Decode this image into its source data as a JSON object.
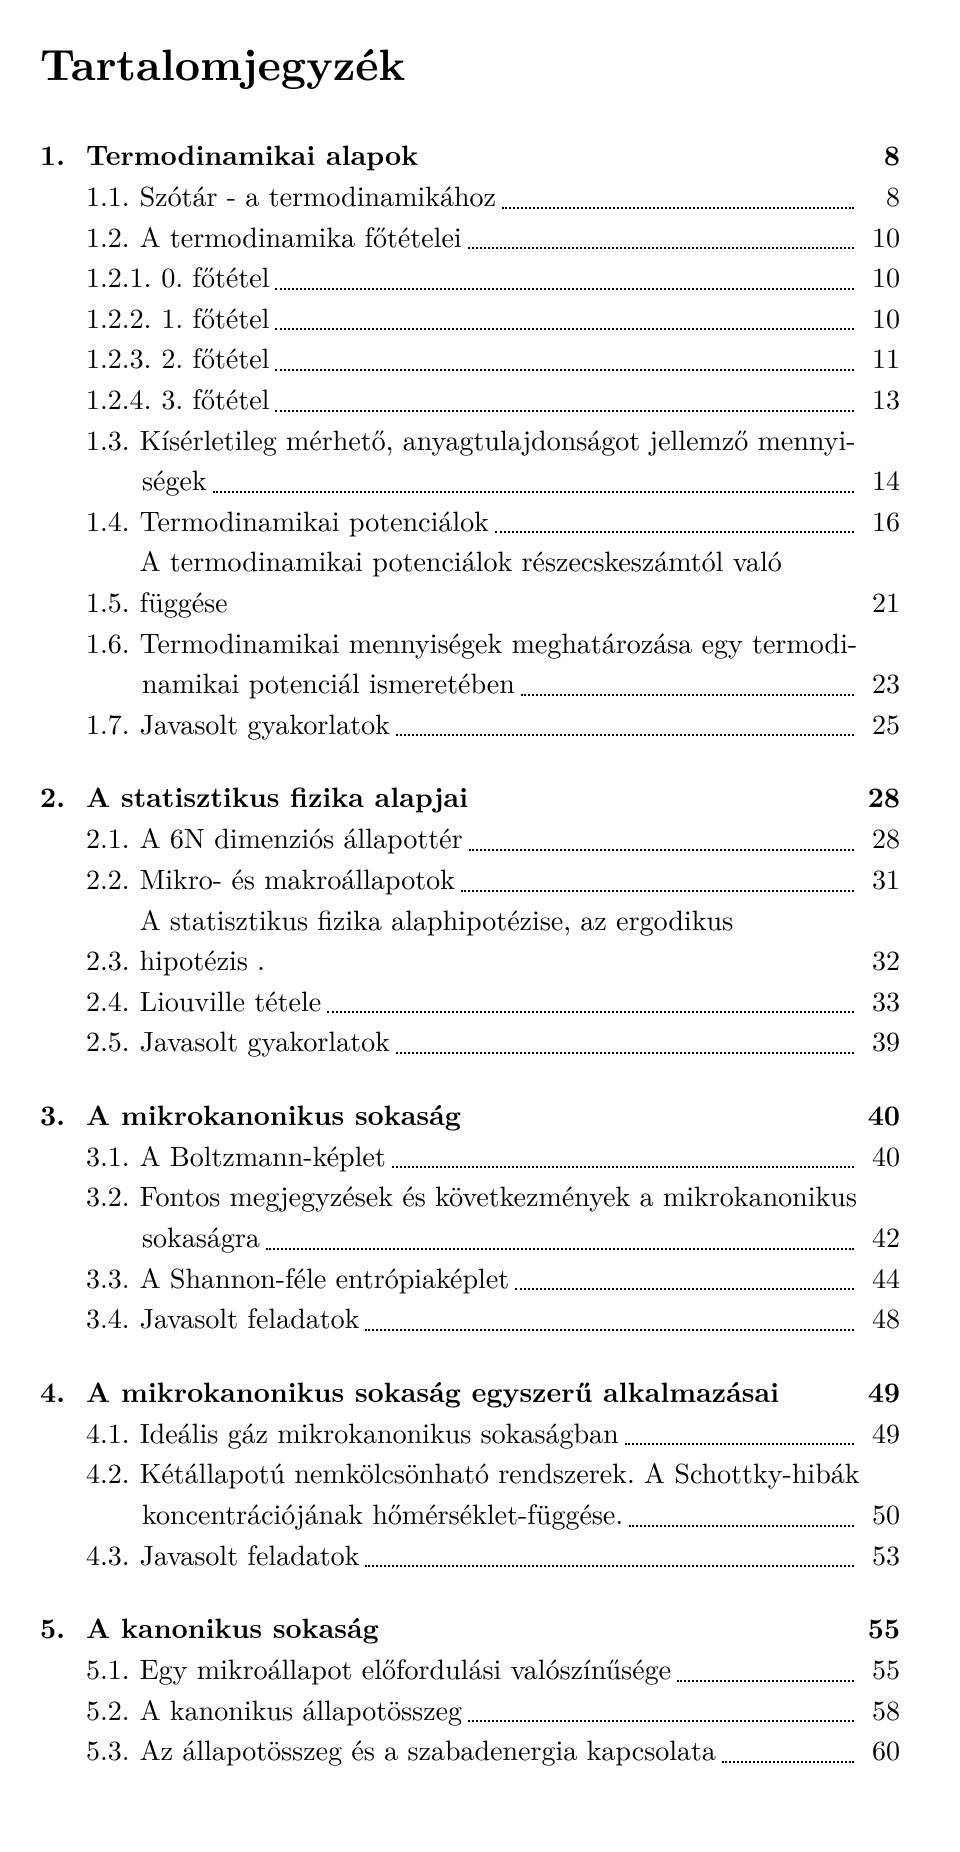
{
  "title": "Tartalomjegyzék",
  "chapters": [
    {
      "num": "1.",
      "title": "Termodinamikai alapok",
      "page": "8",
      "sections": [
        {
          "num": "1.1.",
          "title": "Szótár - a termodinamikához",
          "page": "8"
        },
        {
          "num": "1.2.",
          "title": "A termodinamika főtételei",
          "page": "10"
        },
        {
          "num": "1.2.1.",
          "title": "0. főtétel",
          "page": "10"
        },
        {
          "num": "1.2.2.",
          "title": "1. főtétel",
          "page": "10"
        },
        {
          "num": "1.2.3.",
          "title": "2. főtétel",
          "page": "11"
        },
        {
          "num": "1.2.4.",
          "title": "3. főtétel",
          "page": "13"
        },
        {
          "num": "1.3.",
          "multiline": true,
          "line1": "Kísérletileg mérhető, anyagtulajdonságot jellemző mennyi-",
          "line2": "ségek",
          "page": "14"
        },
        {
          "num": "1.4.",
          "title": "Termodinamikai potenciálok",
          "page": "16"
        },
        {
          "num": "1.5.",
          "title": "A termodinamikai potenciálok részecskeszámtól való függése",
          "page": "21",
          "nodots": true
        },
        {
          "num": "1.6.",
          "multiline": true,
          "line1": "Termodinamikai mennyiségek meghatározása egy termodi-",
          "line2": "namikai potenciál ismeretében",
          "page": "23"
        },
        {
          "num": "1.7.",
          "title": "Javasolt gyakorlatok",
          "page": "25"
        }
      ]
    },
    {
      "num": "2.",
      "title": "A statisztikus fizika alapjai",
      "page": "28",
      "sections": [
        {
          "num": "2.1.",
          "title": "A 6N dimenziós állapottér",
          "page": "28"
        },
        {
          "num": "2.2.",
          "title": "Mikro- és makroállapotok",
          "page": "31"
        },
        {
          "num": "2.3.",
          "title": "A statisztikus fizika alaphipotézise, az ergodikus hipotézis .",
          "page": "32",
          "nodots": true
        },
        {
          "num": "2.4.",
          "title": "Liouville tétele",
          "page": "33"
        },
        {
          "num": "2.5.",
          "title": "Javasolt gyakorlatok",
          "page": "39"
        }
      ]
    },
    {
      "num": "3.",
      "title": "A mikrokanonikus sokaság",
      "page": "40",
      "sections": [
        {
          "num": "3.1.",
          "title": "A Boltzmann-képlet",
          "page": "40"
        },
        {
          "num": "3.2.",
          "multiline": true,
          "line1": "Fontos megjegyzések és következmények a mikrokanonikus",
          "line2": "sokaságra",
          "page": "42"
        },
        {
          "num": "3.3.",
          "title": "A Shannon-féle entrópiaképlet",
          "page": "44"
        },
        {
          "num": "3.4.",
          "title": "Javasolt feladatok",
          "page": "48"
        }
      ]
    },
    {
      "num": "4.",
      "title": "A mikrokanonikus sokaság egyszerű alkalmazásai",
      "page": "49",
      "sections": [
        {
          "num": "4.1.",
          "title": "Ideális gáz mikrokanonikus sokaságban",
          "page": "49"
        },
        {
          "num": "4.2.",
          "multiline": true,
          "line1": "Kétállapotú nemkölcsönható rendszerek. A Schottky-hibák",
          "line2": "koncentrációjának hőmérséklet-függése.",
          "page": "50"
        },
        {
          "num": "4.3.",
          "title": "Javasolt feladatok",
          "page": "53"
        }
      ]
    },
    {
      "num": "5.",
      "title": "A kanonikus sokaság",
      "page": "55",
      "sections": [
        {
          "num": "5.1.",
          "title": "Egy mikroállapot előfordulási valószínűsége",
          "page": "55"
        },
        {
          "num": "5.2.",
          "title": "A kanonikus állapotösszeg",
          "page": "58"
        },
        {
          "num": "5.3.",
          "title": "Az állapotösszeg és a szabadenergia kapcsolata",
          "page": "60"
        }
      ]
    }
  ]
}
